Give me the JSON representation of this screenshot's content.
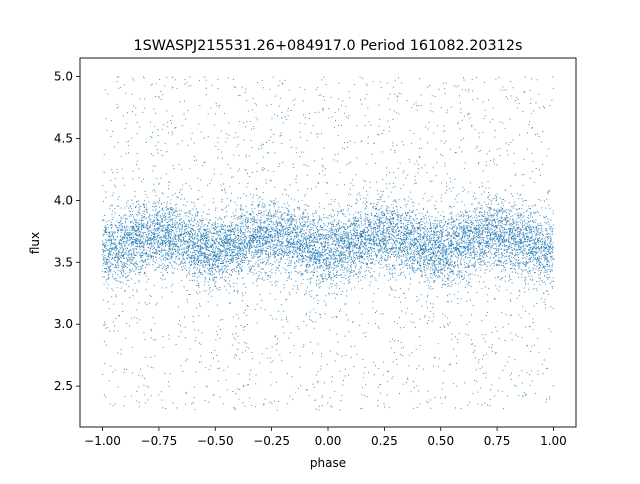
{
  "chart_data": {
    "type": "scatter",
    "title": "1SWASPJ215531.26+084917.0 Period 161082.20312s",
    "xlabel": "phase",
    "ylabel": "flux",
    "xlim": [
      -1.1,
      1.1
    ],
    "ylim": [
      2.17,
      5.15
    ],
    "xticks": [
      "−1.00",
      "−0.75",
      "−0.50",
      "−0.25",
      "0.00",
      "0.25",
      "0.50",
      "0.75",
      "1.00"
    ],
    "xtick_values": [
      -1.0,
      -0.75,
      -0.5,
      -0.25,
      0.0,
      0.25,
      0.5,
      0.75,
      1.0
    ],
    "yticks": [
      "2.5",
      "3.0",
      "3.5",
      "4.0",
      "4.5",
      "5.0"
    ],
    "ytick_values": [
      2.5,
      3.0,
      3.5,
      4.0,
      4.5,
      5.0
    ],
    "grid": false,
    "marker_color": "#1f77b4",
    "data_summary": {
      "phase_range": [
        -1.0,
        1.0
      ],
      "flux_range": [
        2.3,
        5.0
      ],
      "dense_band_center": 3.65,
      "dense_band_range": [
        3.3,
        4.0
      ],
      "band_center_near_phase_0": 3.6,
      "band_center_near_phase_0_5": 3.72
    }
  }
}
